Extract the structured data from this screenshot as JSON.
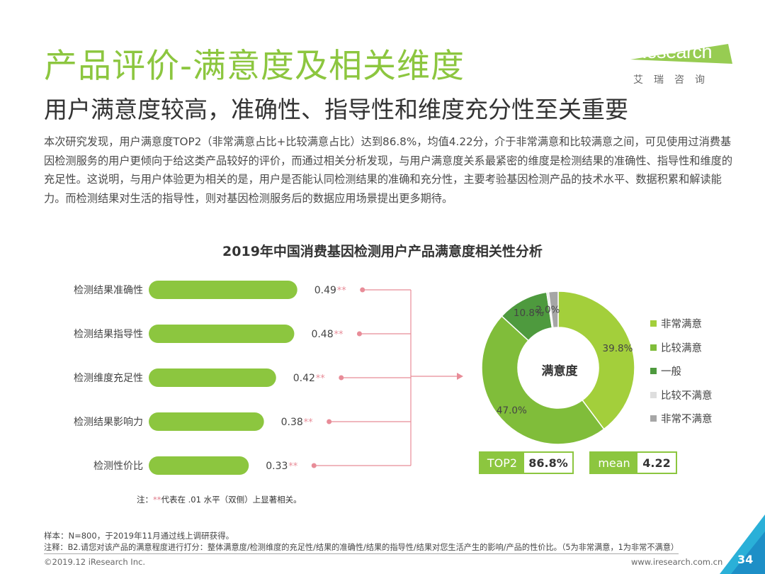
{
  "header": {
    "title": "产品评价-满意度及相关维度",
    "subtitle": "用户满意度较高，准确性、指导性和维度充分性至关重要"
  },
  "logo": {
    "brand_i": "i",
    "brand_rest": "Research",
    "sub": "艾瑞咨询"
  },
  "intro": "本次研究发现，用户满意度TOP2（非常满意占比+比较满意占比）达到86.8%，均值4.22分，介于非常满意和比较满意之间，可见使用过消费基因检测服务的用户更倾向于给这类产品较好的评价，而通过相关分析发现，与用户满意度关系最紧密的维度是检测结果的准确性、指导性和维度的充足性。这说明，与用户体验更为相关的是，用户是否能认同检测结果的准确和充分性，主要考验基因检测产品的技术水平、数据积累和解读能力。而检测结果对生活的指导性，则对基因检测服务后的数据应用场景提出更多期待。",
  "chart_data": [
    {
      "type": "bar",
      "orientation": "horizontal",
      "title": "2019年中国消费基因检测用户产品满意度相关性分析",
      "categories": [
        "检测结果准确性",
        "检测结果指导性",
        "检测维度充足性",
        "检测结果影响力",
        "检测性价比"
      ],
      "values": [
        0.49,
        0.48,
        0.42,
        0.38,
        0.33
      ],
      "value_labels": [
        "0.49",
        "0.48",
        "0.42",
        "0.38",
        "0.33"
      ],
      "significance": "**",
      "color": "#8cc63f"
    },
    {
      "type": "pie",
      "variant": "donut",
      "center_label": "满意度",
      "slices": [
        {
          "name": "非常满意",
          "value": 39.8,
          "label": "39.8%",
          "color": "#a3cf3b"
        },
        {
          "name": "比较满意",
          "value": 47.0,
          "label": "47.0%",
          "color": "#80bd3a"
        },
        {
          "name": "一般",
          "value": 10.8,
          "label": "10.8%",
          "color": "#4e9a3e"
        },
        {
          "name": "比较不满意",
          "value": 0.4,
          "label": "",
          "color": "#dedede"
        },
        {
          "name": "非常不满意",
          "value": 2.0,
          "label": "2.0%",
          "color": "#a6a6a6"
        }
      ],
      "legend_position": "right"
    }
  ],
  "stats": {
    "top2_label": "TOP2",
    "top2_value": "86.8%",
    "mean_label": "mean",
    "mean_value": "4.22"
  },
  "footnote_sig": {
    "star": "**",
    "text": "代表在 .01 水平（双侧）上显著相关。",
    "prefix": "注："
  },
  "footer": {
    "sample": "样本：N=800，于2019年11月通过线上调研获得。",
    "note": "注释：B2.请您对该产品的满意程度进行打分：整体满意度/检测维度的充足性/结果的准确性/结果的指导性/结果对您生活产生的影响/产品的性价比。（5为非常满意，1为非常不满意）",
    "copyright": "©2019.12 iResearch Inc.",
    "site": "www.iresearch.com.cn",
    "page": "34"
  },
  "colors": {
    "accent": "#8cc63f",
    "connector": "#e88c98"
  }
}
